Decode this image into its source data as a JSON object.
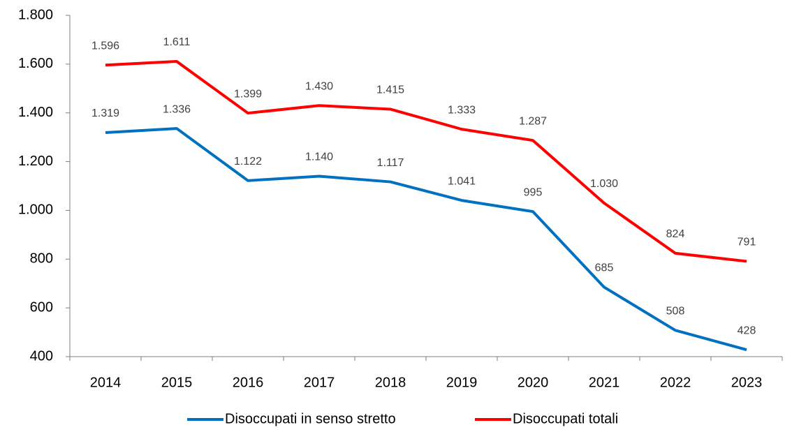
{
  "chart_data": {
    "type": "line",
    "categories": [
      "2014",
      "2015",
      "2016",
      "2017",
      "2018",
      "2019",
      "2020",
      "2021",
      "2022",
      "2023"
    ],
    "series": [
      {
        "name": "Disoccupati in senso stretto",
        "color": "#0070c0",
        "values": [
          1319,
          1336,
          1122,
          1140,
          1117,
          1041,
          995,
          685,
          508,
          428
        ],
        "value_labels": [
          "1.319",
          "1.336",
          "1.122",
          "1.140",
          "1.117",
          "1.041",
          "995",
          "685",
          "508",
          "428"
        ]
      },
      {
        "name": "Disoccupati totali",
        "color": "#ff0000",
        "values": [
          1596,
          1611,
          1399,
          1430,
          1415,
          1333,
          1287,
          1030,
          824,
          791
        ],
        "value_labels": [
          "1.596",
          "1.611",
          "1.399",
          "1.430",
          "1.415",
          "1.333",
          "1.287",
          "1.030",
          "824",
          "791"
        ]
      }
    ],
    "ylim": [
      400,
      1800
    ],
    "yticks": [
      400,
      600,
      800,
      {
        "value": 1000,
        "label": "1.000"
      },
      {
        "value": 1200,
        "label": "1.200"
      },
      {
        "value": 1400,
        "label": "1.400"
      },
      {
        "value": 1600,
        "label": "1.600"
      },
      {
        "value": 1800,
        "label": "1.800"
      }
    ],
    "grid": false,
    "legend": "bottom"
  }
}
